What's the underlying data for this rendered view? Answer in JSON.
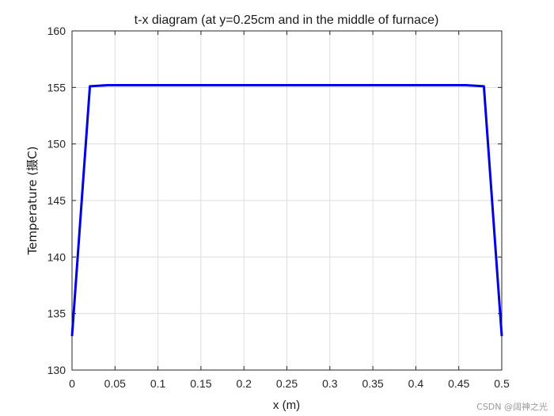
{
  "chart_data": {
    "type": "line",
    "title": "t-x diagram (at y=0.25cm and in the middle of furnace)",
    "xlabel": "x (m)",
    "ylabel": "Temperature (摄C)",
    "xlim": [
      0,
      0.5
    ],
    "ylim": [
      130,
      160
    ],
    "xticks": [
      "0",
      "0.05",
      "0.1",
      "0.15",
      "0.2",
      "0.25",
      "0.3",
      "0.35",
      "0.4",
      "0.45",
      "0.5"
    ],
    "yticks": [
      "130",
      "135",
      "140",
      "145",
      "150",
      "155",
      "160"
    ],
    "grid": true,
    "series": [
      {
        "color": "#0000e0",
        "x": [
          0,
          0.0208,
          0.0417,
          0.0625,
          0.25,
          0.4375,
          0.4583,
          0.4792,
          0.5
        ],
        "y": [
          133.0,
          155.1,
          155.2,
          155.2,
          155.2,
          155.2,
          155.2,
          155.1,
          133.0
        ]
      }
    ]
  },
  "watermark": "CSDN @阔神之光"
}
